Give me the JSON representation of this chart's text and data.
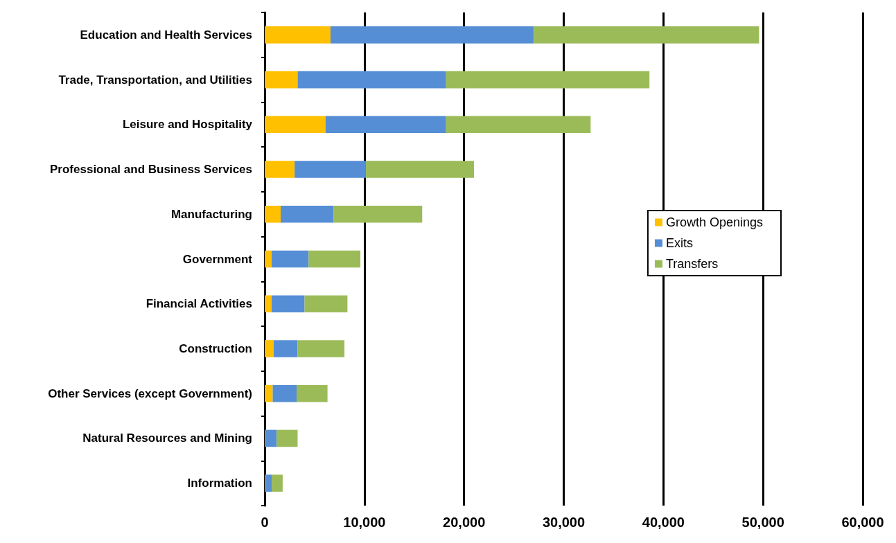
{
  "chart_data": {
    "type": "bar",
    "orientation": "horizontal",
    "stacked": true,
    "categories": [
      "Education and Health Services",
      "Trade, Transportation, and Utilities",
      "Leisure and Hospitality",
      "Professional and Business Services",
      "Manufacturing",
      "Government",
      "Financial Activities",
      "Construction",
      "Other Services (except Government)",
      "Natural Resources and Mining",
      "Information"
    ],
    "series": [
      {
        "name": "Growth Openings",
        "color": "#ffc000",
        "values": [
          6600,
          3300,
          6100,
          3000,
          1600,
          700,
          700,
          900,
          800,
          100,
          100
        ]
      },
      {
        "name": "Exits",
        "color": "#558ed5",
        "values": [
          20400,
          14900,
          12100,
          7100,
          5300,
          3700,
          3300,
          2400,
          2400,
          1100,
          600
        ]
      },
      {
        "name": "Transfers",
        "color": "#9bbb59",
        "values": [
          22600,
          20400,
          14500,
          10900,
          8900,
          5200,
          4300,
          4700,
          3100,
          2100,
          1100
        ]
      }
    ],
    "xlim": [
      0,
      60000
    ],
    "xticks": [
      {
        "value": 0,
        "label": "0"
      },
      {
        "value": 10000,
        "label": "10,000"
      },
      {
        "value": 20000,
        "label": "20,000"
      },
      {
        "value": 30000,
        "label": "30,000"
      },
      {
        "value": 40000,
        "label": "40,000"
      },
      {
        "value": 50000,
        "label": "50,000"
      },
      {
        "value": 60000,
        "label": "60,000"
      }
    ],
    "grid": "x",
    "legend": "right"
  }
}
